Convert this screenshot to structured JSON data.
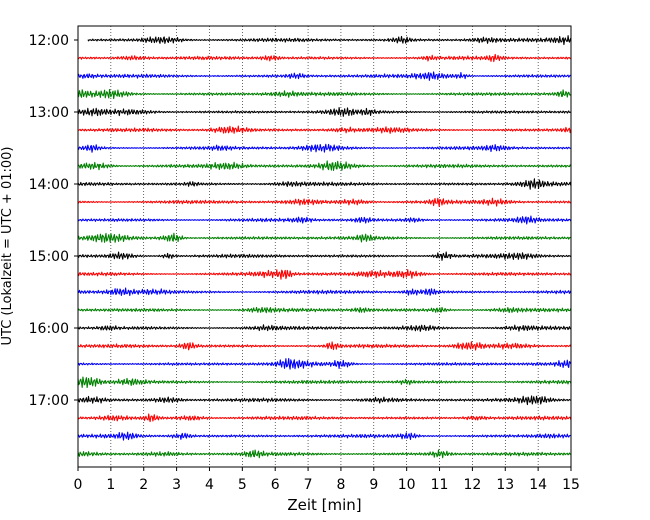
{
  "chart_data": {
    "type": "line",
    "subtype": "helicorder",
    "title": "",
    "xlabel": "Zeit  [min]",
    "ylabel": "UTC (Lokalzeit = UTC + 01:00)",
    "xlim": [
      0,
      15
    ],
    "x_ticks": [
      "0",
      "1",
      "2",
      "3",
      "4",
      "5",
      "6",
      "7",
      "8",
      "9",
      "10",
      "11",
      "12",
      "13",
      "14",
      "15"
    ],
    "y_tick_labels": [
      "12:00",
      "13:00",
      "14:00",
      "15:00",
      "16:00",
      "17:00"
    ],
    "trace_minutes_per_line": 15,
    "trace_count": 24,
    "trace_colors": [
      "#000000",
      "#ff0000",
      "#0000ff",
      "#008000"
    ],
    "grid": "vertical dotted at each minute",
    "legend": "none"
  }
}
